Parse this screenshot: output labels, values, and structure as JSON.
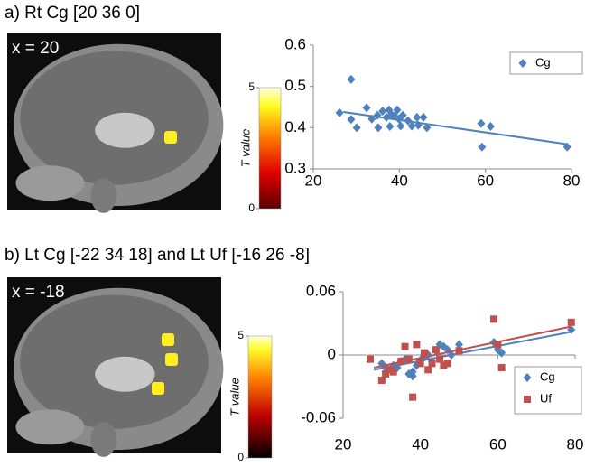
{
  "chart_data": [
    {
      "type": "scatter",
      "title": "a) Rt Cg [20 36 0]",
      "slice_label": "x = 20",
      "colorbar": {
        "label": "T value",
        "ticks": [
          0,
          5
        ]
      },
      "xlim": [
        20,
        80
      ],
      "xticks": [
        20,
        40,
        60,
        80
      ],
      "ylim": [
        0.3,
        0.6
      ],
      "yticks": [
        0.3,
        0.4,
        0.5,
        0.6
      ],
      "legend": "top-right",
      "series": [
        {
          "name": "Cg",
          "color": "#4f81bd",
          "marker": "diamond",
          "x": [
            26.1,
            28.8,
            28.8,
            30.1,
            32.4,
            33.6,
            34.9,
            35.1,
            36.1,
            37.0,
            37.6,
            37.8,
            38.2,
            38.9,
            39.5,
            39.9,
            40.3,
            40.8,
            42.0,
            42.9,
            44.1,
            44.4,
            45.6,
            46.4,
            59.0,
            59.2,
            61.2,
            79.0
          ],
          "values": [
            0.436,
            0.517,
            0.42,
            0.4,
            0.448,
            0.421,
            0.43,
            0.4,
            0.44,
            0.425,
            0.443,
            0.403,
            0.432,
            0.428,
            0.443,
            0.421,
            0.404,
            0.43,
            0.417,
            0.404,
            0.425,
            0.406,
            0.425,
            0.4,
            0.41,
            0.353,
            0.403,
            0.353
          ],
          "trend_x": [
            27,
            79
          ],
          "trend_values": [
            0.438,
            0.36
          ]
        }
      ]
    },
    {
      "type": "scatter",
      "title": "b) Lt Cg [-22 34 18] and Lt Uf [-16 26 -8]",
      "slice_label": "x = -18",
      "colorbar": {
        "label": "T value",
        "ticks": [
          0,
          5
        ]
      },
      "xlim": [
        20,
        80
      ],
      "xticks": [
        20,
        40,
        60,
        80
      ],
      "ylim": [
        -0.06,
        0.06
      ],
      "yticks": [
        -0.06,
        0,
        0.06
      ],
      "legend": "bottom-right",
      "series": [
        {
          "name": "Cg",
          "color": "#4f81bd",
          "marker": "diamond",
          "x": [
            30,
            31,
            33,
            34,
            35,
            36,
            37,
            38,
            38,
            39,
            40,
            41,
            42,
            43,
            44,
            45,
            46,
            47,
            48,
            50,
            59,
            60,
            61,
            79
          ],
          "values": [
            -0.008,
            -0.012,
            -0.01,
            -0.012,
            -0.006,
            -0.004,
            -0.018,
            -0.016,
            -0.02,
            -0.01,
            -0.005,
            -0.002,
            0.0,
            -0.006,
            0.004,
            0.01,
            0.008,
            0.005,
            0.0,
            0.01,
            0.012,
            0.005,
            0.002,
            0.024
          ],
          "trend_x": [
            28,
            79
          ],
          "trend_values": [
            -0.014,
            0.022
          ]
        },
        {
          "name": "Uf",
          "color": "#c0504d",
          "marker": "square",
          "x": [
            27,
            30,
            31,
            32,
            33,
            35,
            36,
            37,
            38,
            39,
            40,
            41,
            42,
            43,
            44,
            45,
            46,
            47,
            50,
            59,
            60,
            61,
            79
          ],
          "values": [
            -0.004,
            -0.024,
            -0.018,
            -0.014,
            -0.016,
            -0.006,
            0.008,
            -0.004,
            -0.04,
            0.01,
            -0.008,
            0.002,
            -0.014,
            -0.008,
            0.005,
            -0.004,
            -0.01,
            -0.008,
            0.004,
            0.034,
            0.01,
            -0.012,
            0.031
          ],
          "trend_x": [
            28,
            79
          ],
          "trend_values": [
            -0.012,
            0.027
          ]
        }
      ]
    }
  ]
}
